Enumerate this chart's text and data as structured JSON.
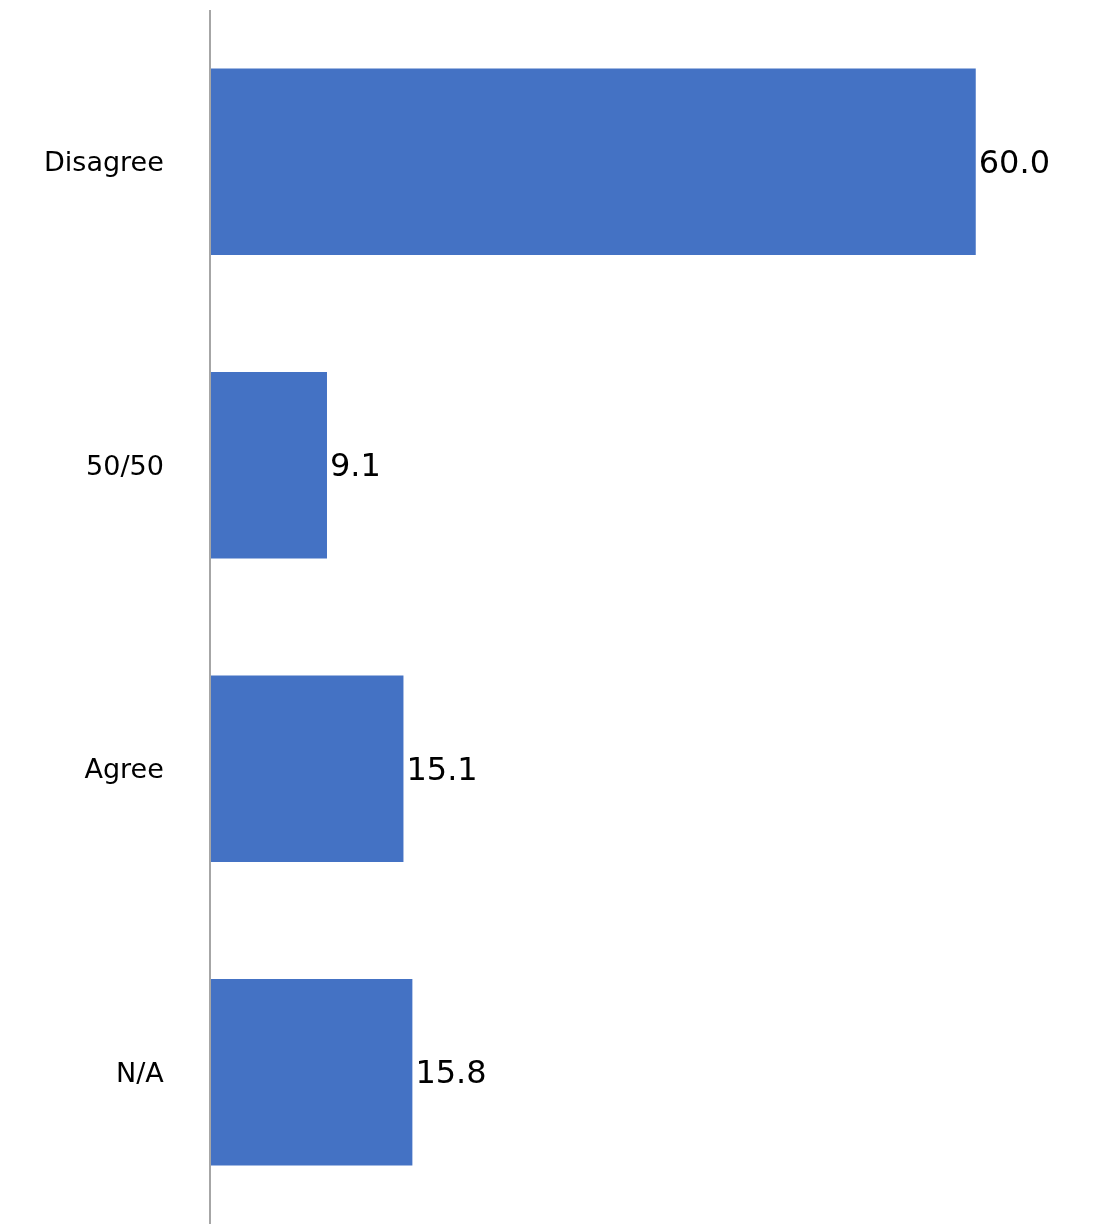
{
  "chart_data": {
    "type": "bar",
    "orientation": "horizontal",
    "categories": [
      "Disagree",
      "50/50",
      "Agree",
      "N/A"
    ],
    "values": [
      60.0,
      9.1,
      15.1,
      15.8
    ],
    "value_labels": [
      "60.0",
      "9.1",
      "15.1",
      "15.8"
    ],
    "color": "#4472c4"
  }
}
